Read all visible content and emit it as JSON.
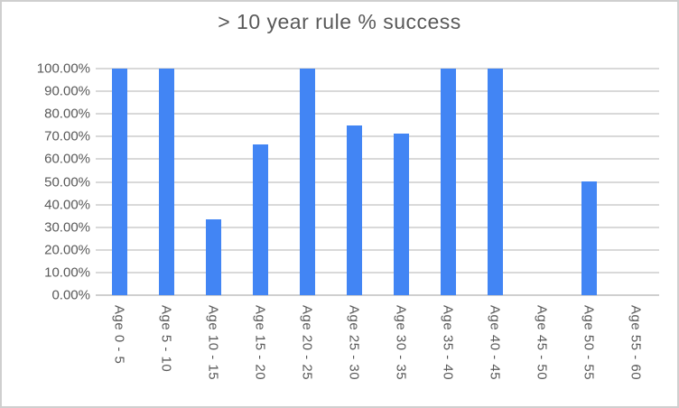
{
  "window": {
    "background": "#ffffff",
    "border_color": "#cfcfcf"
  },
  "chart_data": {
    "type": "bar",
    "title": "> 10 year rule % success",
    "categories": [
      "Age 0 - 5",
      "Age 5 - 10",
      "Age 10 - 15",
      "Age 15 - 20",
      "Age 20 - 25",
      "Age 25 - 30",
      "Age 30 - 35",
      "Age 35 - 40",
      "Age 40 - 45",
      "Age 45 - 50",
      "Age 50 - 55",
      "Age 55 - 60"
    ],
    "values": [
      100,
      100,
      33.33,
      66.67,
      100,
      75,
      71.43,
      100,
      100,
      0,
      50,
      0
    ],
    "y_ticks_top_to_bottom": [
      "100.00%",
      "90.00%",
      "80.00%",
      "70.00%",
      "60.00%",
      "50.00%",
      "40.00%",
      "30.00%",
      "20.00%",
      "10.00%",
      "0.00%"
    ],
    "ylim": [
      0,
      100
    ],
    "xlabel": "",
    "ylabel": "",
    "grid": true,
    "legend": false,
    "x_tick_rotation": "vertical-top-to-bottom",
    "colors": {
      "bar": "#4285F4",
      "gridline": "#d9d9d9",
      "axis_line": "#cfcfcf",
      "text": "#595959"
    }
  }
}
